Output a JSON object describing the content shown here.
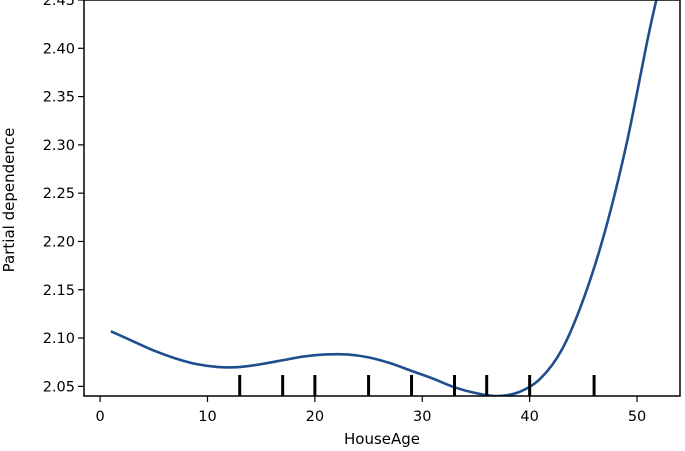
{
  "chart_data": {
    "type": "line",
    "title": "",
    "xlabel": "HouseAge",
    "ylabel": "Partial dependence",
    "xlim": [
      -1.5,
      54
    ],
    "ylim": [
      2.04,
      2.45
    ],
    "xticks": [
      0,
      10,
      20,
      30,
      40,
      50
    ],
    "yticks": [
      2.05,
      2.1,
      2.15,
      2.2,
      2.25,
      2.3,
      2.35,
      2.4,
      2.45
    ],
    "ytick_labels": [
      "2.05",
      "2.10",
      "2.15",
      "2.20",
      "2.25",
      "2.30",
      "2.35",
      "2.40",
      "2.45"
    ],
    "grid": false,
    "series": [
      {
        "color": "#1f4e8c",
        "x": [
          1,
          3,
          5,
          7,
          9,
          11,
          13,
          15,
          17,
          19,
          21,
          23,
          25,
          27,
          29,
          31,
          33,
          35,
          37,
          39,
          41,
          43,
          45,
          47,
          49,
          51,
          52
        ],
        "y": [
          2.107,
          2.097,
          2.087,
          2.079,
          2.073,
          2.07,
          2.07,
          2.073,
          2.077,
          2.081,
          2.083,
          2.083,
          2.08,
          2.074,
          2.066,
          2.058,
          2.049,
          2.043,
          2.04,
          2.044,
          2.058,
          2.088,
          2.14,
          2.21,
          2.3,
          2.41,
          2.46
        ]
      }
    ],
    "deciles": [
      13,
      17,
      20,
      25,
      29,
      33,
      36,
      40,
      46
    ]
  }
}
